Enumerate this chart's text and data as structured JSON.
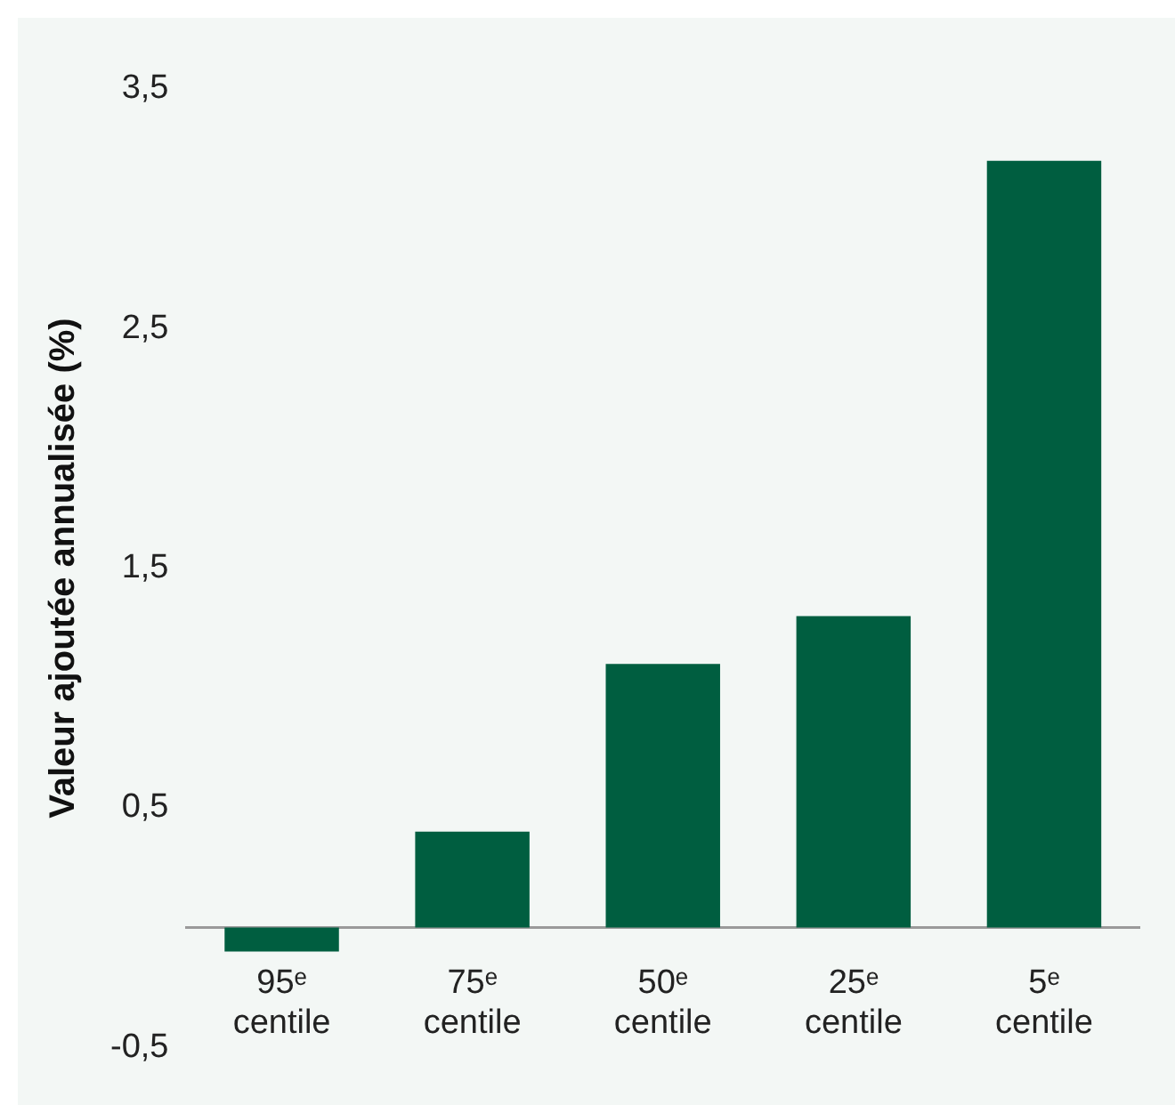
{
  "chart_data": {
    "type": "bar",
    "ylabel": "Valeur ajoutée annualisée (%)",
    "categories": [
      "95ᵉ centile",
      "75ᵉ centile",
      "50ᵉ centile",
      "25ᵉ centile",
      "5ᵉ centile"
    ],
    "values": [
      -0.1,
      0.4,
      1.1,
      1.3,
      3.2
    ],
    "color": "#005e40",
    "ylim": [
      -0.5,
      3.5
    ],
    "yticks": [
      {
        "value": -0.5,
        "label": "-0,5"
      },
      {
        "value": 0.5,
        "label": "0,5"
      },
      {
        "value": 1.5,
        "label": "1,5"
      },
      {
        "value": 2.5,
        "label": "2,5"
      },
      {
        "value": 3.5,
        "label": "3,5"
      }
    ],
    "grid": false,
    "legend": false
  }
}
